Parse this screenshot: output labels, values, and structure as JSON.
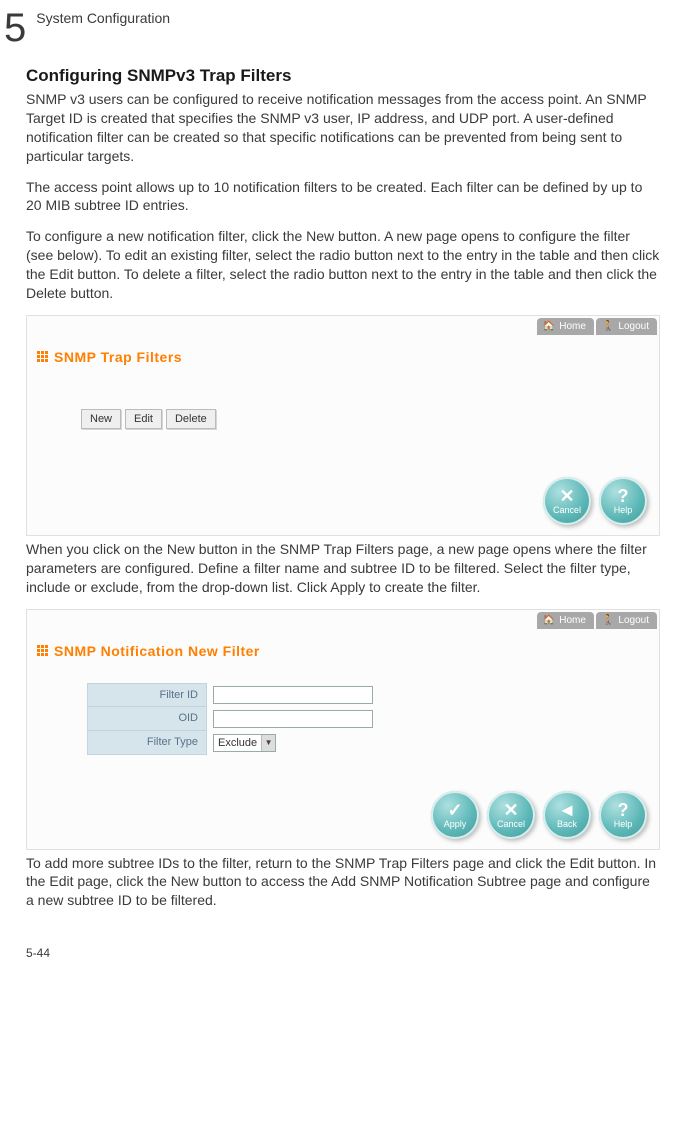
{
  "header": {
    "chapter_number": "5",
    "chapter_title": "System Configuration"
  },
  "section_title": "Configuring SNMPv3 Trap Filters",
  "para1": "SNMP v3 users can be configured to receive notification messages from the access point. An SNMP Target ID is created that specifies the SNMP v3 user, IP address, and UDP port. A user-defined notification filter can be created so that specific notifications can be prevented from being sent to particular targets.",
  "para2": "The access point allows up to 10 notification filters to be created. Each filter can be defined by up to 20 MIB subtree ID entries.",
  "para3": "To configure a new notification filter, click the New button. A new page opens to configure the filter (see below). To edit an existing filter, select the radio button next to the entry in the table and then click the Edit button. To delete a filter, select the radio button next to the entry in the table and then click the Delete button.",
  "shot1": {
    "tabs": {
      "home": "Home",
      "logout": "Logout"
    },
    "title": "SNMP Trap Filters",
    "buttons": {
      "new": "New",
      "edit": "Edit",
      "delete": "Delete"
    },
    "circles": {
      "cancel": "Cancel",
      "help": "Help"
    }
  },
  "para4": "When you click on the New button in the SNMP Trap Filters page, a new page opens where the filter parameters are configured. Define a filter name and subtree ID to be filtered. Select the filter type, include or exclude, from the drop-down list. Click Apply to create the filter.",
  "shot2": {
    "tabs": {
      "home": "Home",
      "logout": "Logout"
    },
    "title": "SNMP Notification New Filter",
    "fields": {
      "filter_id_label": "Filter ID",
      "oid_label": "OID",
      "filter_type_label": "Filter Type",
      "filter_type_value": "Exclude"
    },
    "circles": {
      "apply": "Apply",
      "cancel": "Cancel",
      "back": "Back",
      "help": "Help"
    }
  },
  "para5": "To add more subtree IDs to the filter, return to the SNMP Trap Filters page and click the Edit button. In the Edit page, click the New button to access the Add SNMP Notification Subtree page and configure a new subtree ID to be filtered.",
  "page_number": "5-44"
}
